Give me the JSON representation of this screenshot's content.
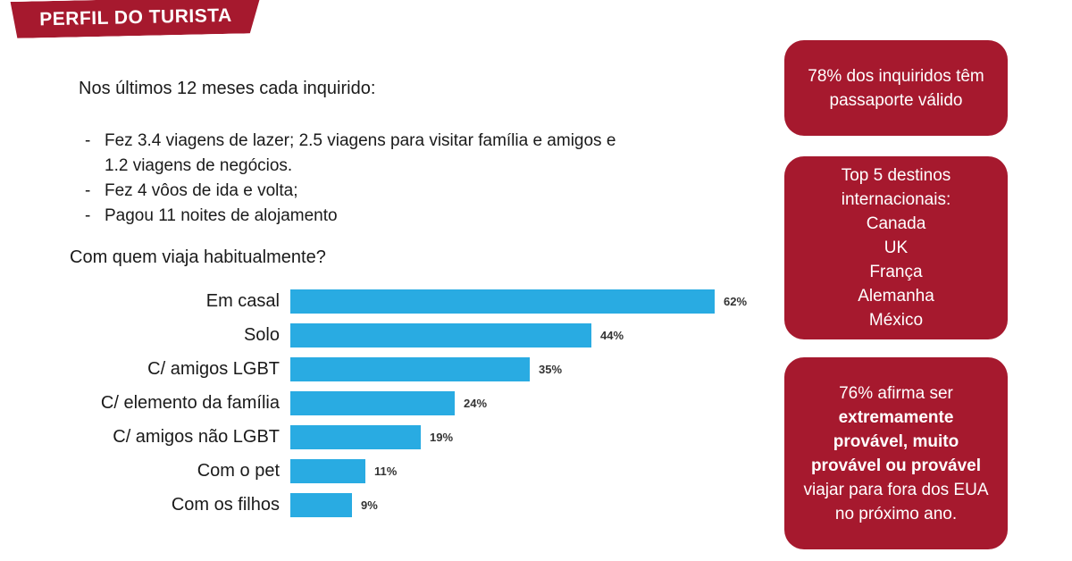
{
  "colors": {
    "accent_red": "#A6192E",
    "bar_blue": "#29ABE2",
    "text": "#1A1A1A",
    "card_text": "#FFFFFF"
  },
  "header": {
    "title": "PERFIL DO TURISTA"
  },
  "intro": {
    "heading": "Nos últimos 12 meses cada inquirido:",
    "bullet_marker": "-",
    "bullets": [
      "Fez 3.4 viagens de lazer; 2.5 viagens para visitar família e amigos e 1.2 viagens de negócios.",
      "Fez 4 vôos de ida e volta;",
      "Pagou 11 noites de alojamento"
    ]
  },
  "chart_data": {
    "type": "bar",
    "orientation": "horizontal",
    "title": "Com quem viaja habitualmente?",
    "categories": [
      "Em casal",
      "Solo",
      "C/ amigos LGBT",
      "C/ elemento da família",
      "C/ amigos não LGBT",
      "Com o pet",
      "Com os filhos"
    ],
    "values": [
      62,
      44,
      35,
      24,
      19,
      11,
      9
    ],
    "value_labels": [
      "62%",
      "44%",
      "35%",
      "24%",
      "19%",
      "11%",
      "9%"
    ],
    "xlim": [
      0,
      62
    ],
    "bar_color": "#29ABE2",
    "grid": false,
    "legend": false
  },
  "sidebar": {
    "cards": [
      {
        "text": "78% dos inquiridos têm passaporte válido"
      },
      {
        "title": "Top 5 destinos internacionais:",
        "items": [
          "Canada",
          "UK",
          "França",
          "Alemanha",
          "México"
        ]
      },
      {
        "prefix": "76% afirma ser ",
        "bold": "extremamente provável, muito provável ou provável",
        "suffix": " viajar para fora dos EUA no próximo ano."
      }
    ]
  }
}
